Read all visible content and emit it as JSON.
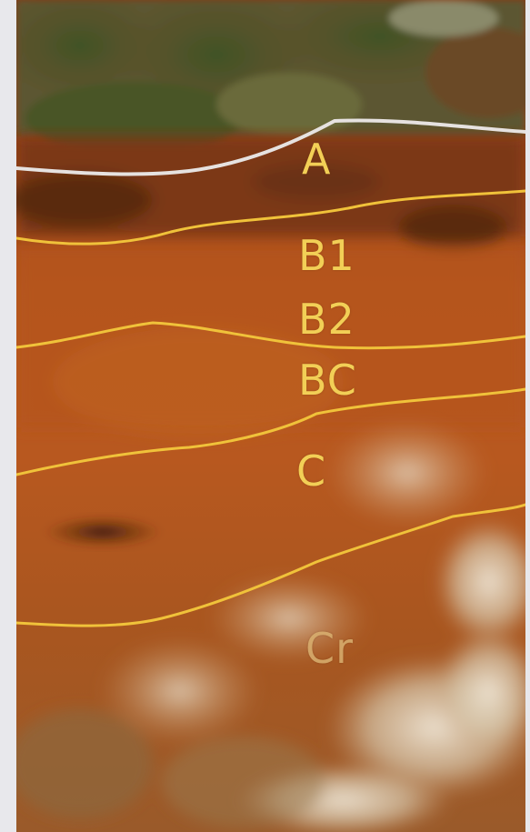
{
  "image": {
    "subject": "soil-profile-photo",
    "horizon_labels": [
      "A",
      "B1",
      "B2",
      "BC",
      "C",
      "Cr"
    ]
  },
  "colors": {
    "page_background": "#e8e8ec",
    "vegetation": "#4b5a2a",
    "soil_red": "#b4541c",
    "soil_dark": "#7a3412",
    "rock_pale": "#d9cdb8",
    "boundary_line_white": "#e6e2e0",
    "boundary_line_yellow": "#f0c23a",
    "label_color": "#f2cf56"
  }
}
